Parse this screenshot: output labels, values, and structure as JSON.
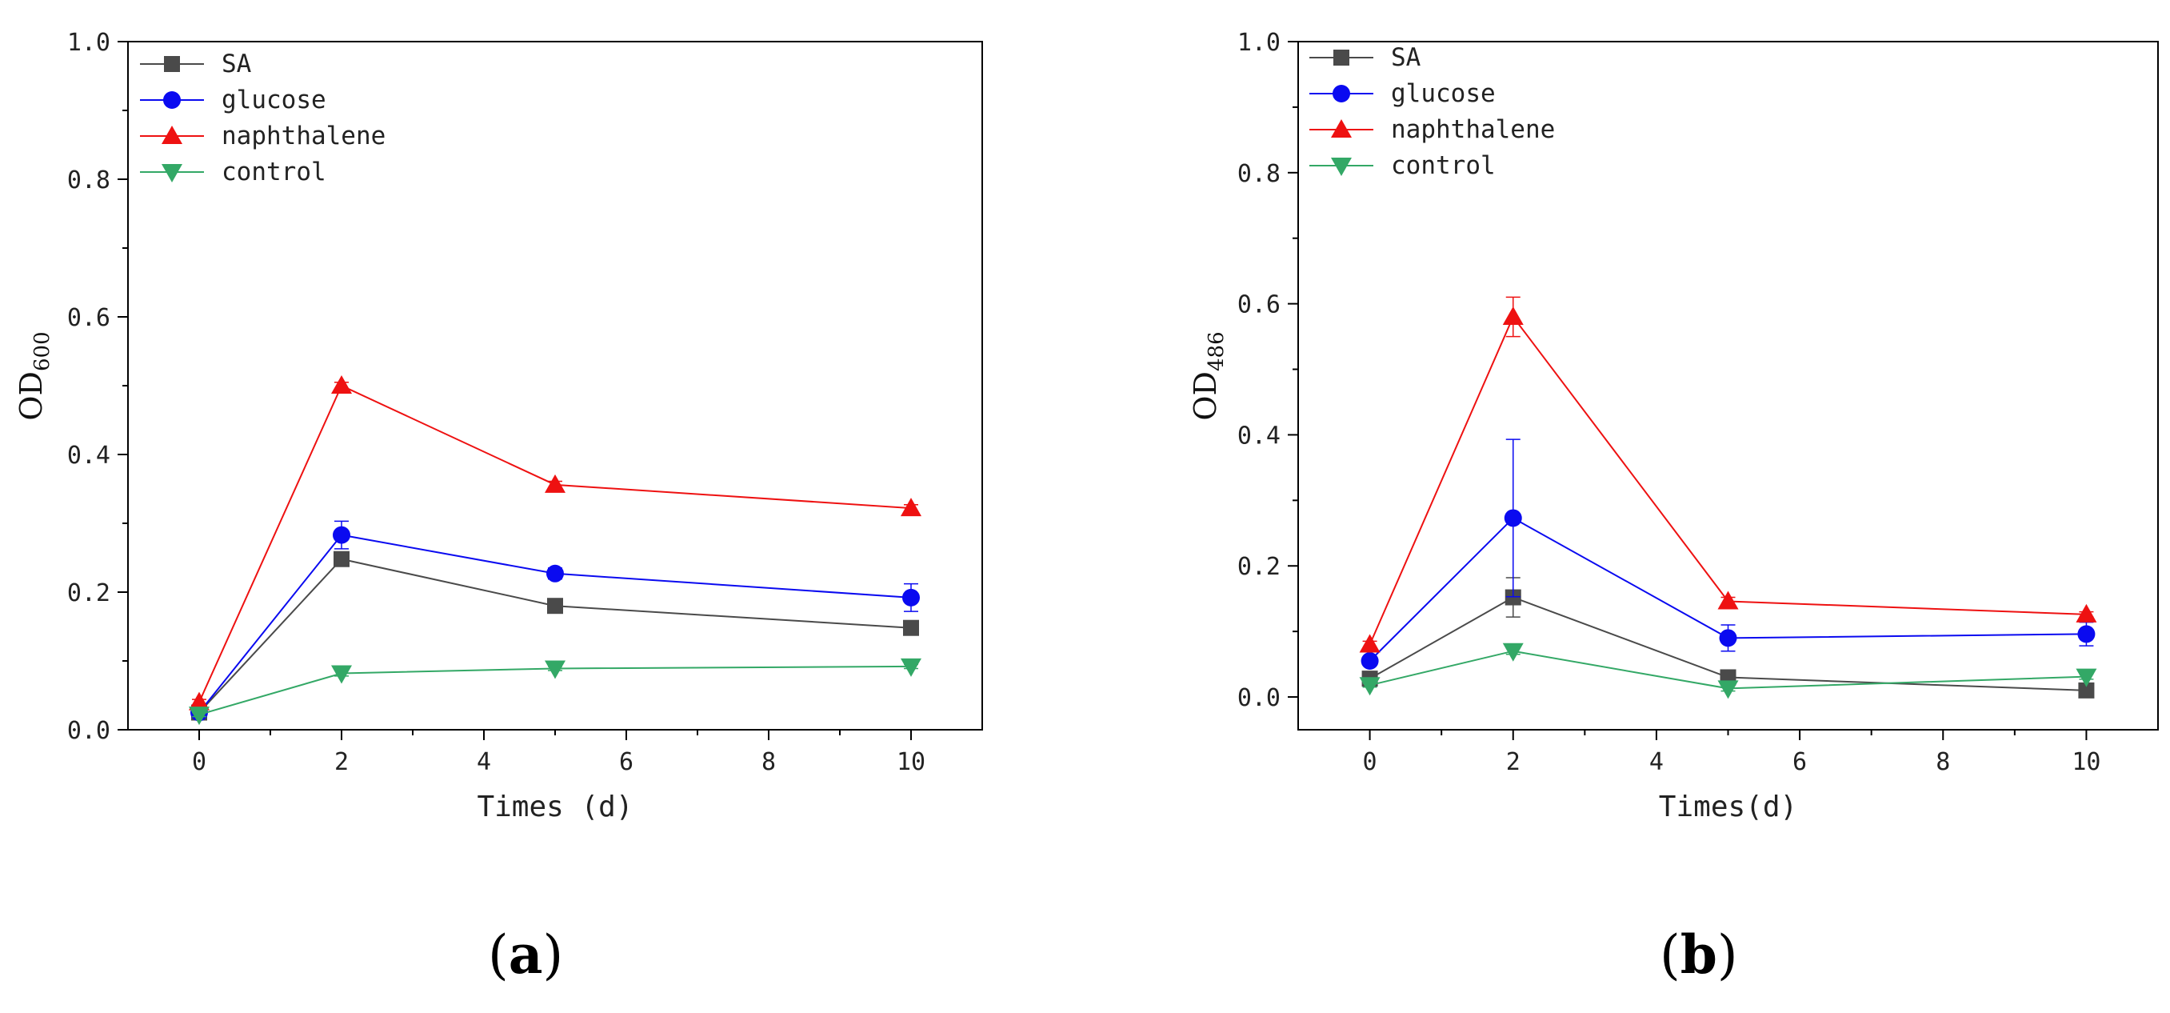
{
  "colors": {
    "SA": "#4a4a4a",
    "glucose": "#0a0af0",
    "naphthalene": "#ee1111",
    "control": "#33a866",
    "axis": "#000000"
  },
  "panel_labels": [
    "(a)",
    "(b)"
  ],
  "chart_data": [
    {
      "type": "line",
      "panel": "(a)",
      "title": "",
      "xlabel": "Times (d)",
      "ylabel_main": "OD",
      "ylabel_sub": "600",
      "xlim": [
        -1,
        11
      ],
      "ylim": [
        0,
        1.0
      ],
      "xticks": [
        0,
        2,
        4,
        6,
        8,
        10
      ],
      "xtick_labels": [
        "0",
        "2",
        "4",
        "6",
        "8",
        "10"
      ],
      "yticks": [
        0,
        0.2,
        0.4,
        0.6,
        0.8,
        1.0
      ],
      "ytick_labels": [
        "0.0",
        "0.2",
        "0.4",
        "0.6",
        "0.8",
        "1.0"
      ],
      "legend_position": "top-left",
      "x": [
        0,
        2,
        5,
        10
      ],
      "series": [
        {
          "name": "SA",
          "marker": "square",
          "values": [
            0.025,
            0.248,
            0.18,
            0.148
          ],
          "errors": [
            0.005,
            0.008,
            0.006,
            0.006
          ]
        },
        {
          "name": "glucose",
          "marker": "circle",
          "values": [
            0.025,
            0.283,
            0.227,
            0.192
          ],
          "errors": [
            0.005,
            0.02,
            0.008,
            0.02
          ]
        },
        {
          "name": "naphthalene",
          "marker": "triangle-up",
          "values": [
            0.04,
            0.5,
            0.356,
            0.322
          ],
          "errors": [
            0.004,
            0.005,
            0.005,
            0.005
          ]
        },
        {
          "name": "control",
          "marker": "triangle-down",
          "values": [
            0.022,
            0.082,
            0.089,
            0.092
          ],
          "errors": [
            0.003,
            0.004,
            0.003,
            0.003
          ]
        }
      ]
    },
    {
      "type": "line",
      "panel": "(b)",
      "title": "",
      "xlabel": "Times(d)",
      "ylabel_main": "OD",
      "ylabel_sub": "486",
      "xlim": [
        -1,
        11
      ],
      "ylim": [
        -0.05,
        1.0
      ],
      "xticks": [
        0,
        2,
        4,
        6,
        8,
        10
      ],
      "xtick_labels": [
        "0",
        "2",
        "4",
        "6",
        "8",
        "10"
      ],
      "yticks": [
        0,
        0.2,
        0.4,
        0.6,
        0.8,
        1.0
      ],
      "ytick_labels": [
        "0.0",
        "0.2",
        "0.4",
        "0.6",
        "0.8",
        "1.0"
      ],
      "legend_position": "top-left",
      "x": [
        0,
        2,
        5,
        10
      ],
      "series": [
        {
          "name": "SA",
          "marker": "square",
          "values": [
            0.028,
            0.152,
            0.03,
            0.01
          ],
          "errors": [
            0.004,
            0.03,
            0.006,
            0.004
          ]
        },
        {
          "name": "glucose",
          "marker": "circle",
          "values": [
            0.055,
            0.273,
            0.09,
            0.096
          ],
          "errors": [
            0.006,
            0.12,
            0.02,
            0.018
          ]
        },
        {
          "name": "naphthalene",
          "marker": "triangle-up",
          "values": [
            0.08,
            0.58,
            0.146,
            0.126
          ],
          "errors": [
            0.005,
            0.03,
            0.006,
            0.004
          ]
        },
        {
          "name": "control",
          "marker": "triangle-down",
          "values": [
            0.018,
            0.07,
            0.013,
            0.031
          ],
          "errors": [
            0.003,
            0.005,
            0.004,
            0.004
          ]
        }
      ]
    }
  ]
}
